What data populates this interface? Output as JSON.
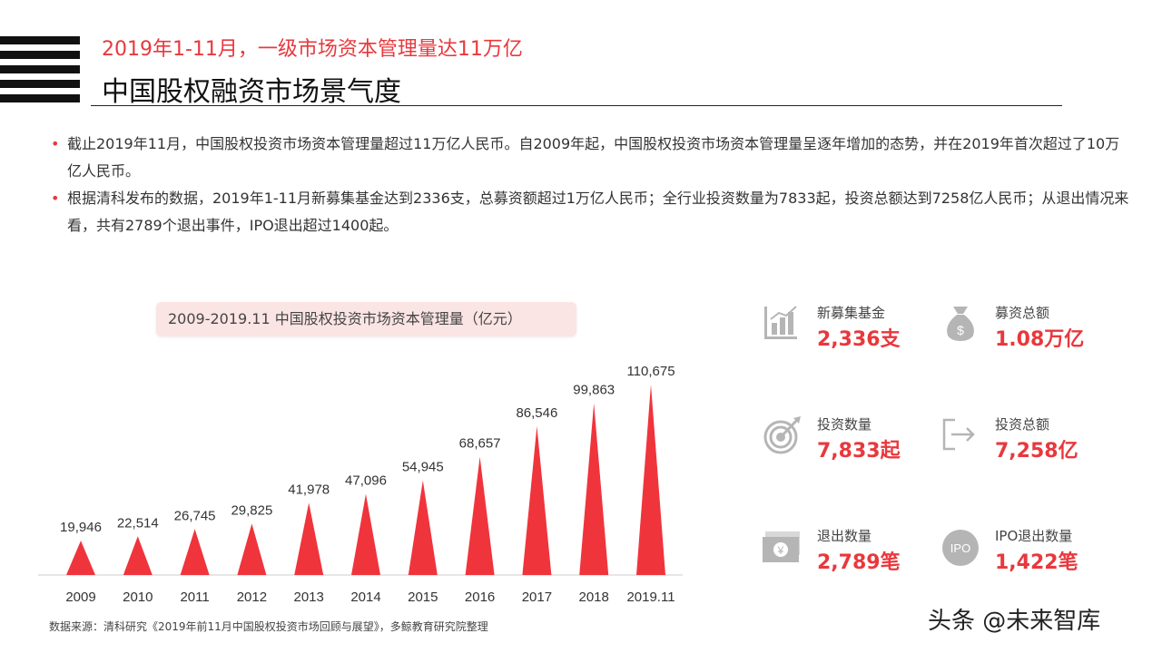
{
  "header": {
    "subtitle": "2019年1-11月，一级市场资本管理量达11万亿",
    "title": "中国股权融资市场景气度"
  },
  "bullets": [
    "截止2019年11月，中国股权投资市场资本管理量超过11万亿人民币。自2009年起，中国股权投资市场资本管理量呈逐年增加的态势，并在2019年首次超过了10万亿人民币。",
    "根据清科发布的数据，2019年1-11月新募集基金达到2336支，总募资额超过1万亿人民币；全行业投资数量为7833起，投资总额达到7258亿人民币；从退出情况来看，共有2789个退出事件，IPO退出超过1400起。"
  ],
  "chart_data": {
    "type": "bar",
    "title": "2009-2019.11 中国股权投资市场资本管理量（亿元）",
    "categories": [
      "2009",
      "2010",
      "2011",
      "2012",
      "2013",
      "2014",
      "2015",
      "2016",
      "2017",
      "2018",
      "2019.11"
    ],
    "values": [
      19946,
      22514,
      26745,
      29825,
      41978,
      47096,
      54945,
      68657,
      86546,
      99863,
      110675
    ],
    "value_labels": [
      "19,946",
      "22,514",
      "26,745",
      "29,825",
      "41,978",
      "47,096",
      "54,945",
      "68,657",
      "86,546",
      "99,863",
      "110,675"
    ],
    "xlabel": "",
    "ylabel": "",
    "ylim": [
      0,
      110675
    ],
    "grid": false,
    "bar_shape": "triangle",
    "color": "#f0343c"
  },
  "stats": [
    {
      "label": "新募集基金",
      "value": "2,336支",
      "icon": "bar-chart-icon"
    },
    {
      "label": "募资总额",
      "value": "1.08万亿",
      "icon": "money-bag-icon"
    },
    {
      "label": "投资数量",
      "value": "7,833起",
      "icon": "target-icon"
    },
    {
      "label": "投资总额",
      "value": "7,258亿",
      "icon": "exit-arrow-icon"
    },
    {
      "label": "退出数量",
      "value": "2,789笔",
      "icon": "banknote-icon"
    },
    {
      "label": "IPO退出数量",
      "value": "1,422笔",
      "icon": "ipo-icon",
      "icon_text": "IPO"
    }
  ],
  "source": "数据来源：清科研究《2019年前11月中国股权投资市场回顾与展望》，多鲸教育研究院整理",
  "watermark": "头条 @未来智库",
  "colors": {
    "accent": "#e8383d",
    "bar": "#f0343c",
    "icon": "#b5b5b5"
  }
}
